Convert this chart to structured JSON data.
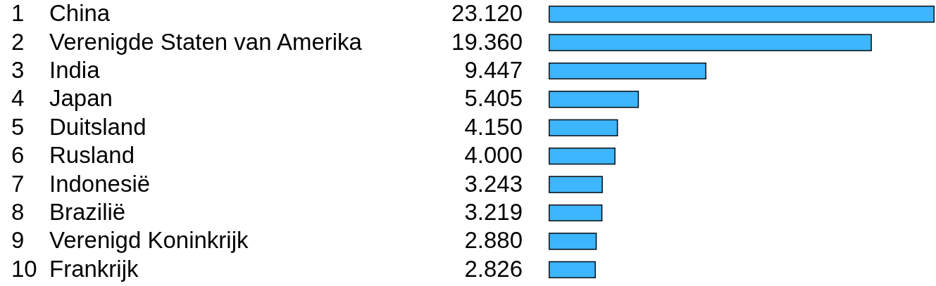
{
  "chart_data": {
    "type": "bar",
    "orientation": "horizontal",
    "categories": [
      "1 China",
      "2 Verenigde Staten van Amerika",
      "3 India",
      "4 Japan",
      "5 Duitsland",
      "6 Rusland",
      "7 Indonesië",
      "8 Brazilië",
      "9 Verenigd Koninkrijk",
      "10 Frankrijk"
    ],
    "values": [
      23120,
      19360,
      9447,
      5405,
      4150,
      4000,
      3243,
      3219,
      2880,
      2826
    ],
    "value_labels": [
      "23.120",
      "19.360",
      "9.447",
      "5.405",
      "4.150",
      "4.000",
      "3.243",
      "3.219",
      "2.880",
      "2.826"
    ],
    "color": "#3db5ff"
  }
}
